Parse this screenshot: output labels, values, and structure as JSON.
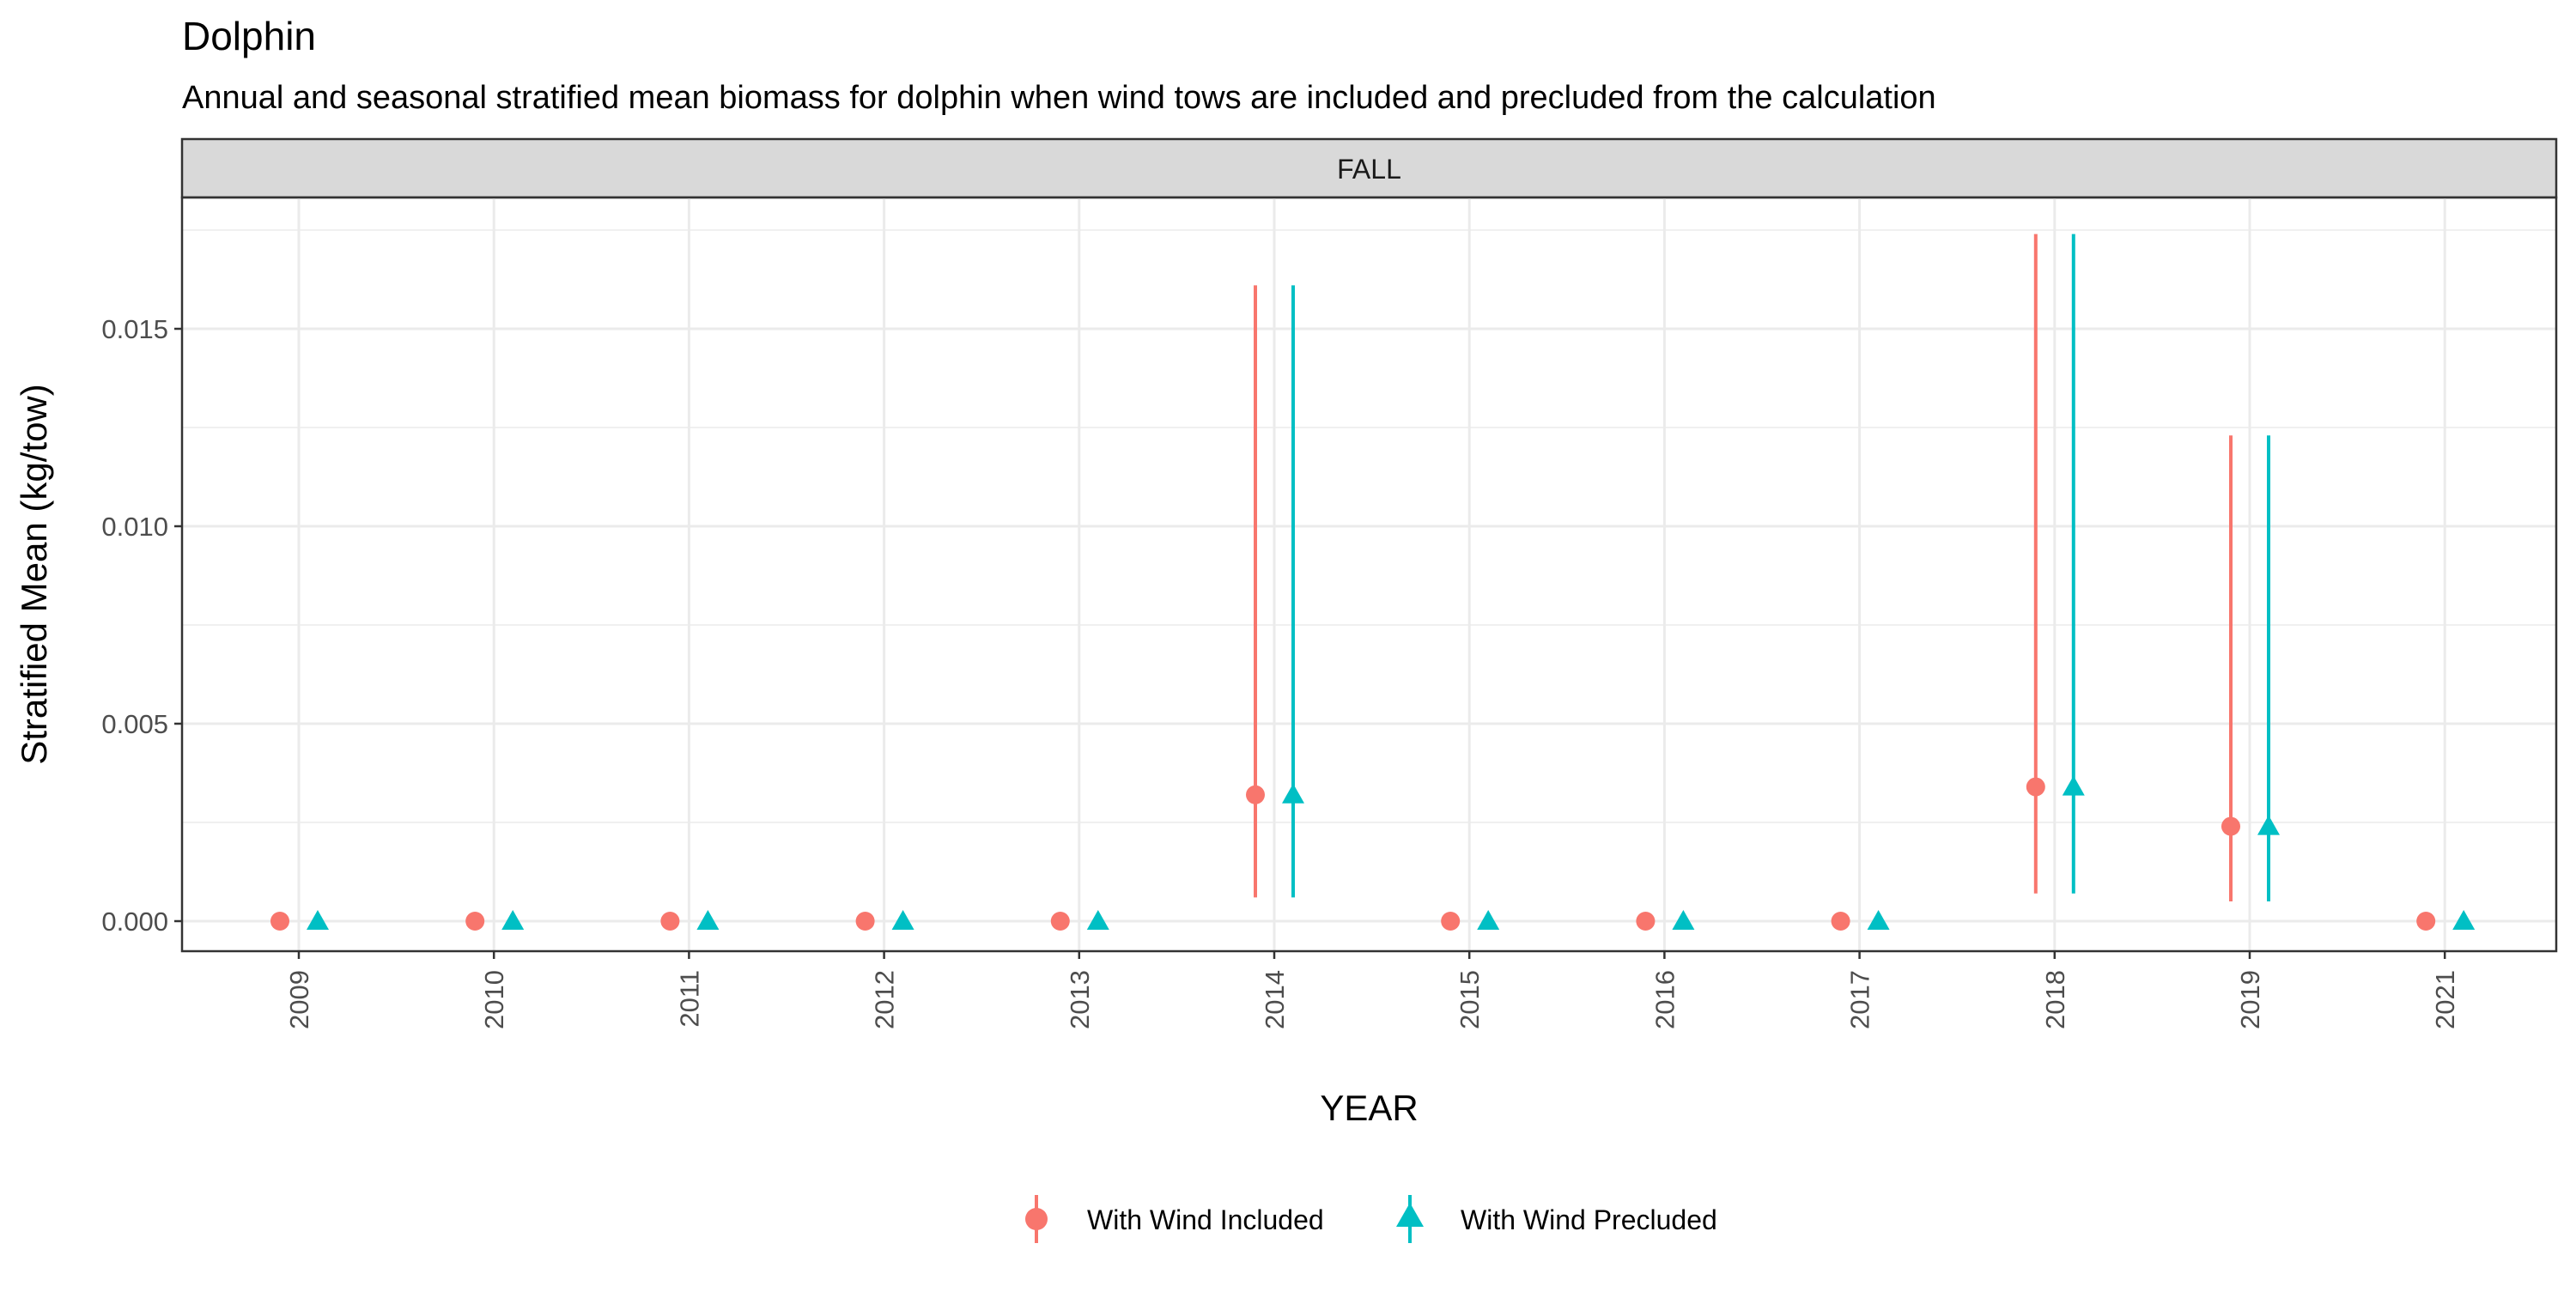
{
  "chart_data": {
    "type": "scatter",
    "title": "Dolphin",
    "subtitle": "Annual and seasonal stratified mean biomass for dolphin when wind tows are included and precluded from the calculation",
    "facet_label": "FALL",
    "xlabel": "YEAR",
    "ylabel": "Stratified Mean (kg/tow)",
    "categories": [
      "2009",
      "2010",
      "2011",
      "2012",
      "2013",
      "2014",
      "2015",
      "2016",
      "2017",
      "2018",
      "2019",
      "2021"
    ],
    "ylim": [
      -0.0008,
      0.0183
    ],
    "yticks": [
      0.0,
      0.005,
      0.01,
      0.015
    ],
    "ytick_labels": [
      "0.000",
      "0.005",
      "0.010",
      "0.015"
    ],
    "grid": true,
    "legend_position": "bottom",
    "series": [
      {
        "name": "With Wind Included",
        "color": "#F8766D",
        "marker": "circle",
        "values": [
          0,
          0,
          0,
          0,
          0,
          0.0032,
          0,
          0,
          0,
          0.0034,
          0.0024,
          0
        ],
        "lower": [
          0,
          0,
          0,
          0,
          0,
          0.0006,
          0,
          0,
          0,
          0.0007,
          0.0005,
          0
        ],
        "upper": [
          0,
          0,
          0,
          0,
          0,
          0.0161,
          0,
          0,
          0,
          0.0174,
          0.0123,
          0
        ]
      },
      {
        "name": "With Wind Precluded",
        "color": "#00BFC4",
        "marker": "triangle",
        "values": [
          0,
          0,
          0,
          0,
          0,
          0.0032,
          0,
          0,
          0,
          0.0034,
          0.0024,
          0
        ],
        "lower": [
          0,
          0,
          0,
          0,
          0,
          0.0006,
          0,
          0,
          0,
          0.0007,
          0.0005,
          0
        ],
        "upper": [
          0,
          0,
          0,
          0,
          0,
          0.0161,
          0,
          0,
          0,
          0.0174,
          0.0123,
          0
        ]
      }
    ]
  }
}
